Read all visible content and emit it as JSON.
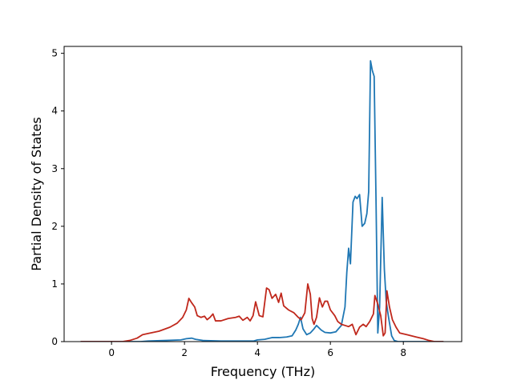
{
  "chart_data": {
    "type": "line",
    "xlabel": "Frequency (THz)",
    "ylabel": "Partial Density of States",
    "xlim": [
      -1.3,
      9.6
    ],
    "ylim": [
      0,
      5.12
    ],
    "xticks": [
      0,
      2,
      4,
      6,
      8
    ],
    "yticks": [
      0,
      1,
      2,
      3,
      4,
      5
    ],
    "grid": false,
    "legend": "none",
    "series": [
      {
        "color": "#1f77b4",
        "points": [
          [
            -0.85,
            0.0
          ],
          [
            0.8,
            0.0
          ],
          [
            1.0,
            0.01
          ],
          [
            1.5,
            0.02
          ],
          [
            1.9,
            0.03
          ],
          [
            2.05,
            0.05
          ],
          [
            2.2,
            0.06
          ],
          [
            2.3,
            0.04
          ],
          [
            2.5,
            0.02
          ],
          [
            3.0,
            0.01
          ],
          [
            3.5,
            0.01
          ],
          [
            3.9,
            0.01
          ],
          [
            4.0,
            0.03
          ],
          [
            4.2,
            0.04
          ],
          [
            4.4,
            0.07
          ],
          [
            4.6,
            0.07
          ],
          [
            4.8,
            0.08
          ],
          [
            4.95,
            0.1
          ],
          [
            5.05,
            0.2
          ],
          [
            5.12,
            0.3
          ],
          [
            5.18,
            0.42
          ],
          [
            5.25,
            0.22
          ],
          [
            5.35,
            0.12
          ],
          [
            5.45,
            0.15
          ],
          [
            5.55,
            0.22
          ],
          [
            5.62,
            0.28
          ],
          [
            5.75,
            0.2
          ],
          [
            5.85,
            0.16
          ],
          [
            6.0,
            0.15
          ],
          [
            6.15,
            0.17
          ],
          [
            6.3,
            0.28
          ],
          [
            6.4,
            0.6
          ],
          [
            6.45,
            1.2
          ],
          [
            6.5,
            1.62
          ],
          [
            6.55,
            1.35
          ],
          [
            6.62,
            2.42
          ],
          [
            6.68,
            2.52
          ],
          [
            6.73,
            2.48
          ],
          [
            6.8,
            2.55
          ],
          [
            6.87,
            2.0
          ],
          [
            6.94,
            2.05
          ],
          [
            7.0,
            2.22
          ],
          [
            7.05,
            2.6
          ],
          [
            7.1,
            4.87
          ],
          [
            7.15,
            4.7
          ],
          [
            7.2,
            4.6
          ],
          [
            7.25,
            2.5
          ],
          [
            7.3,
            0.15
          ],
          [
            7.35,
            0.6
          ],
          [
            7.42,
            2.5
          ],
          [
            7.48,
            1.25
          ],
          [
            7.53,
            0.7
          ],
          [
            7.6,
            0.4
          ],
          [
            7.68,
            0.1
          ],
          [
            7.75,
            0.02
          ],
          [
            7.85,
            0.0
          ],
          [
            8.5,
            0.0
          ],
          [
            9.1,
            0.0
          ]
        ]
      },
      {
        "color": "#c0281c",
        "points": [
          [
            -0.85,
            0.0
          ],
          [
            0.3,
            0.0
          ],
          [
            0.5,
            0.02
          ],
          [
            0.7,
            0.06
          ],
          [
            0.85,
            0.12
          ],
          [
            1.0,
            0.14
          ],
          [
            1.3,
            0.18
          ],
          [
            1.6,
            0.25
          ],
          [
            1.8,
            0.32
          ],
          [
            1.95,
            0.42
          ],
          [
            2.05,
            0.55
          ],
          [
            2.12,
            0.75
          ],
          [
            2.2,
            0.67
          ],
          [
            2.28,
            0.6
          ],
          [
            2.35,
            0.45
          ],
          [
            2.45,
            0.42
          ],
          [
            2.55,
            0.44
          ],
          [
            2.62,
            0.38
          ],
          [
            2.7,
            0.42
          ],
          [
            2.78,
            0.48
          ],
          [
            2.85,
            0.36
          ],
          [
            3.0,
            0.36
          ],
          [
            3.2,
            0.4
          ],
          [
            3.4,
            0.42
          ],
          [
            3.5,
            0.44
          ],
          [
            3.6,
            0.37
          ],
          [
            3.72,
            0.42
          ],
          [
            3.8,
            0.36
          ],
          [
            3.88,
            0.45
          ],
          [
            3.95,
            0.69
          ],
          [
            4.05,
            0.45
          ],
          [
            4.15,
            0.43
          ],
          [
            4.25,
            0.93
          ],
          [
            4.32,
            0.9
          ],
          [
            4.4,
            0.75
          ],
          [
            4.5,
            0.82
          ],
          [
            4.58,
            0.68
          ],
          [
            4.65,
            0.84
          ],
          [
            4.72,
            0.62
          ],
          [
            4.85,
            0.55
          ],
          [
            5.0,
            0.5
          ],
          [
            5.12,
            0.42
          ],
          [
            5.2,
            0.38
          ],
          [
            5.3,
            0.5
          ],
          [
            5.38,
            1.0
          ],
          [
            5.45,
            0.82
          ],
          [
            5.5,
            0.4
          ],
          [
            5.55,
            0.3
          ],
          [
            5.62,
            0.42
          ],
          [
            5.7,
            0.76
          ],
          [
            5.78,
            0.6
          ],
          [
            5.85,
            0.7
          ],
          [
            5.92,
            0.7
          ],
          [
            6.0,
            0.55
          ],
          [
            6.12,
            0.45
          ],
          [
            6.2,
            0.35
          ],
          [
            6.3,
            0.3
          ],
          [
            6.4,
            0.28
          ],
          [
            6.5,
            0.26
          ],
          [
            6.55,
            0.28
          ],
          [
            6.6,
            0.3
          ],
          [
            6.7,
            0.12
          ],
          [
            6.8,
            0.25
          ],
          [
            6.9,
            0.3
          ],
          [
            6.98,
            0.26
          ],
          [
            7.08,
            0.35
          ],
          [
            7.18,
            0.48
          ],
          [
            7.22,
            0.8
          ],
          [
            7.3,
            0.65
          ],
          [
            7.38,
            0.45
          ],
          [
            7.45,
            0.1
          ],
          [
            7.5,
            0.15
          ],
          [
            7.55,
            0.88
          ],
          [
            7.62,
            0.6
          ],
          [
            7.7,
            0.38
          ],
          [
            7.8,
            0.25
          ],
          [
            7.9,
            0.15
          ],
          [
            8.1,
            0.12
          ],
          [
            8.35,
            0.08
          ],
          [
            8.55,
            0.05
          ],
          [
            8.7,
            0.02
          ],
          [
            8.85,
            0.0
          ],
          [
            9.1,
            0.0
          ]
        ]
      }
    ]
  }
}
